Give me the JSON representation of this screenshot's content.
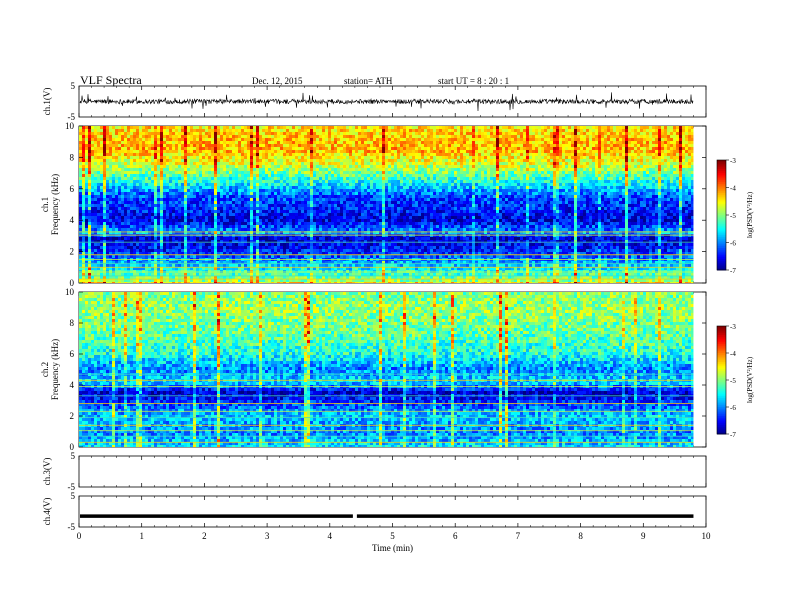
{
  "header": {
    "title": "VLF Spectra",
    "date": "Dec. 12, 2015",
    "station": "station= ATH",
    "start": "start  UT =   8  : 20 : 1"
  },
  "chart_data": [
    {
      "type": "line",
      "ylabel": "ch.1(V)",
      "ylim": [
        -5,
        5
      ],
      "yticks": [
        "5",
        "-5"
      ],
      "xlim": [
        0,
        10
      ],
      "series_color": "#000000",
      "description_values": {
        "baseline_v": 0.0,
        "amplitude_v": 1.5
      }
    },
    {
      "type": "heatmap",
      "ylabel1": "ch.1",
      "ylabel2": "Frequency  (kHz)",
      "ylim": [
        0,
        10
      ],
      "yticks": [
        "0",
        "2",
        "4",
        "6",
        "8",
        "10"
      ],
      "xlim": [
        0,
        10
      ],
      "data_xmax": 9.8,
      "colorbar": {
        "label": "log(PSD(V²/Hz)",
        "range": [
          -7,
          -3
        ],
        "ticks": [
          "-3",
          "-4",
          "-5",
          "-6",
          "-7"
        ]
      },
      "profile": [
        {
          "f": 0.0,
          "v": -4.8
        },
        {
          "f": 1.0,
          "v": -5.6
        },
        {
          "f": 2.0,
          "v": -6.4
        },
        {
          "f": 2.9,
          "v": -6.7
        },
        {
          "f": 3.2,
          "v": -5.9
        },
        {
          "f": 4.0,
          "v": -6.6
        },
        {
          "f": 5.5,
          "v": -6.2
        },
        {
          "f": 6.5,
          "v": -5.4
        },
        {
          "f": 7.5,
          "v": -4.7
        },
        {
          "f": 8.5,
          "v": -4.2
        },
        {
          "f": 10.0,
          "v": -4.4
        }
      ],
      "hlines_khz": [
        0.25,
        0.45,
        0.7,
        1.0,
        1.25,
        1.5,
        1.8,
        2.6,
        3.05,
        3.25
      ]
    },
    {
      "type": "heatmap",
      "ylabel1": "ch.2",
      "ylabel2": "Frequency  (kHz)",
      "ylim": [
        0,
        10
      ],
      "yticks": [
        "0",
        "2",
        "4",
        "6",
        "8",
        "10"
      ],
      "xlim": [
        0,
        10
      ],
      "data_xmax": 9.8,
      "colorbar": {
        "label": "log(PSD(V²/Hz)",
        "range": [
          -7,
          -3
        ],
        "ticks": [
          "-3",
          "-4",
          "-5",
          "-6",
          "-7"
        ]
      },
      "profile": [
        {
          "f": 0.0,
          "v": -5.6
        },
        {
          "f": 1.0,
          "v": -6.0
        },
        {
          "f": 2.0,
          "v": -5.7
        },
        {
          "f": 3.0,
          "v": -6.4
        },
        {
          "f": 3.5,
          "v": -6.7
        },
        {
          "f": 4.2,
          "v": -5.6
        },
        {
          "f": 5.0,
          "v": -6.0
        },
        {
          "f": 6.0,
          "v": -5.4
        },
        {
          "f": 7.5,
          "v": -5.1
        },
        {
          "f": 9.0,
          "v": -4.9
        },
        {
          "f": 10.0,
          "v": -5.0
        }
      ],
      "hlines_khz": [
        0.3,
        0.7,
        1.05,
        1.4,
        1.9,
        2.3,
        2.8,
        3.3,
        3.9,
        4.3,
        4.7
      ]
    },
    {
      "type": "line",
      "ylabel": "ch.3(V)",
      "ylim": [
        -5,
        5
      ],
      "yticks": [
        "5",
        "-5"
      ],
      "xlim": [
        0,
        10
      ]
    },
    {
      "type": "line",
      "ylabel": "ch.4(V)",
      "ylim": [
        -5,
        5
      ],
      "yticks": [
        "5",
        "-5"
      ],
      "xlim": [
        0,
        10
      ],
      "series_color": "#000000",
      "description_values": {
        "baseline_v": -1.5,
        "gap_min": 4.4
      }
    }
  ],
  "xaxis": {
    "label": "Time  (min)",
    "ticks": [
      "0",
      "1",
      "2",
      "3",
      "4",
      "5",
      "6",
      "7",
      "8",
      "9",
      "10"
    ]
  },
  "colors": {
    "jet_low": "#000080",
    "jet_high": "#800000"
  }
}
